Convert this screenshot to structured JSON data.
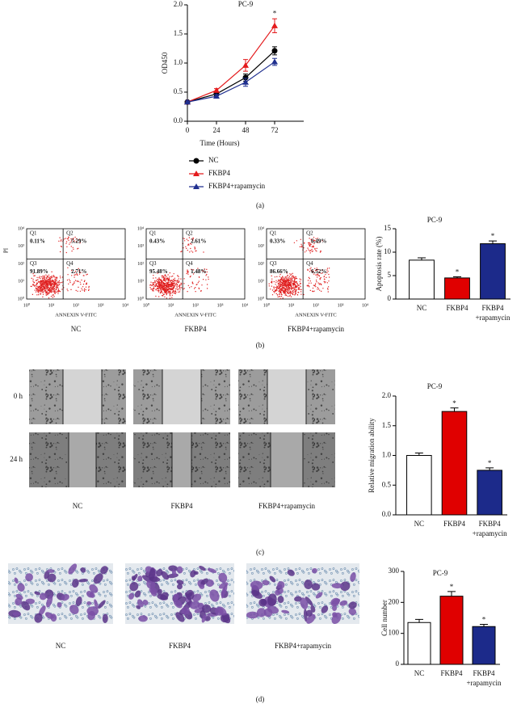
{
  "chart_data": [
    {
      "type": "line",
      "title": "PC-9",
      "x_label": "Time (Hours)",
      "y_label": "OD450",
      "x": [
        0,
        24,
        48,
        72
      ],
      "xlim": [
        0,
        96
      ],
      "xticks": [
        0,
        24,
        48,
        72
      ],
      "ylim": [
        0,
        2
      ],
      "yticks": [
        {
          "value": 0,
          "label": "0.0"
        },
        0.5,
        {
          "value": 1,
          "label": "1.0"
        },
        1.5,
        {
          "value": 2,
          "label": "2.0"
        }
      ],
      "legend": "bottom",
      "series": [
        {
          "name": "NC",
          "color": "#000000",
          "marker": "circle",
          "values": [
            0.33,
            0.47,
            0.75,
            1.21
          ],
          "errors": [
            0.02,
            0.03,
            0.06,
            0.07
          ]
        },
        {
          "name": "FKBP4",
          "color": "#e41a1c",
          "marker": "triangle",
          "values": [
            0.33,
            0.53,
            0.96,
            1.64
          ],
          "errors": [
            0.02,
            0.03,
            0.1,
            0.12
          ],
          "significance": [
            null,
            null,
            null,
            "*"
          ]
        },
        {
          "name": "FKBP4+rapamycin",
          "color": "#1f2f8f",
          "marker": "triangle",
          "values": [
            0.33,
            0.43,
            0.67,
            1.02
          ],
          "errors": [
            0.02,
            0.03,
            0.07,
            0.06
          ]
        }
      ]
    },
    {
      "type": "bar",
      "title": "PC-9",
      "y_label": "Apoptosis rate (%)",
      "categories": [
        "NC",
        "FKBP4",
        "FKBP4\n+rapamycin"
      ],
      "values": [
        8.3,
        4.5,
        11.8
      ],
      "errors": [
        0.5,
        0.25,
        0.6
      ],
      "colors": [
        "#ffffff",
        "#e00000",
        "#1c2a8a"
      ],
      "significance": [
        null,
        "*",
        "*"
      ],
      "ylim": [
        0,
        15
      ],
      "yticks": [
        0,
        5,
        10,
        15
      ]
    },
    {
      "type": "bar",
      "title": "PC-9",
      "y_label": "Relative migration ability",
      "categories": [
        "NC",
        "FKBP4",
        "FKBP4\n+rapamycin"
      ],
      "values": [
        1.0,
        1.74,
        0.75
      ],
      "errors": [
        0.04,
        0.06,
        0.04
      ],
      "colors": [
        "#ffffff",
        "#e00000",
        "#1c2a8a"
      ],
      "significance": [
        null,
        "*",
        "*"
      ],
      "ylim": [
        0,
        2
      ],
      "yticks": [
        {
          "value": 0,
          "label": "0.0"
        },
        0.5,
        {
          "value": 1,
          "label": "1.0"
        },
        1.5,
        {
          "value": 2,
          "label": "2.0"
        }
      ]
    },
    {
      "type": "bar",
      "title": "PC-9",
      "y_label": "Cell number",
      "categories": [
        "NC",
        "FKBP4",
        "FKBP4\n+rapamycin"
      ],
      "values": [
        135,
        220,
        122
      ],
      "errors": [
        10,
        15,
        7
      ],
      "colors": [
        "#ffffff",
        "#e00000",
        "#1c2a8a"
      ],
      "significance": [
        null,
        "*",
        "*"
      ],
      "ylim": [
        0,
        300
      ],
      "yticks": [
        0,
        100,
        200,
        300
      ]
    }
  ],
  "figure": {
    "panel_labels": [
      "(a)",
      "(b)",
      "(c)",
      "(d)"
    ],
    "flow_cytometry": {
      "x_label": "ANNEXIN V-FITC",
      "y_label": "PI",
      "ticks": [
        "10⁰",
        "10¹",
        "10²",
        "10³",
        "10⁴"
      ],
      "quadrant_names": [
        "Q1",
        "Q2",
        "Q3",
        "Q4"
      ],
      "plots": [
        {
          "caption": "NC",
          "percentages": [
            "0.11%",
            "5.29%",
            "91.89%",
            "2.71%"
          ]
        },
        {
          "caption": "FKBP4",
          "percentages": [
            "0.43%",
            "2.61%",
            "95.48%",
            "1.48%"
          ]
        },
        {
          "caption": "FKBP4+rapamycin",
          "percentages": [
            "0.33%",
            "6.49%",
            "86.66%",
            "6.52%"
          ]
        }
      ]
    },
    "wound_healing": {
      "row_labels": [
        "0 h",
        "24 h"
      ],
      "captions": [
        "NC",
        "FKBP4",
        "FKBP4+rapamycin"
      ]
    },
    "transwell": {
      "captions": [
        "NC",
        "FKBP4",
        "FKBP4+rapamycin"
      ]
    }
  }
}
